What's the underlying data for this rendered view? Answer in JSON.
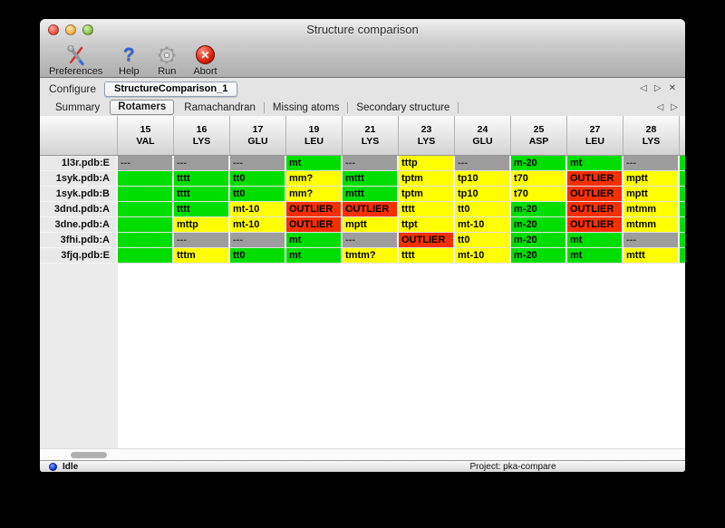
{
  "window": {
    "title": "Structure comparison"
  },
  "toolbar": {
    "items": [
      {
        "label": "Preferences",
        "icon": "tools-icon"
      },
      {
        "label": "Help",
        "icon": "help-icon",
        "glyph": "?"
      },
      {
        "label": "Run",
        "icon": "gear-icon"
      },
      {
        "label": "Abort",
        "icon": "abort-icon",
        "glyph": "✕"
      }
    ]
  },
  "configure": {
    "label": "Configure",
    "selected_config": "StructureComparison_1",
    "prev_glyph": "◁",
    "next_glyph": "▷",
    "close_glyph": "✕"
  },
  "tabs": {
    "items": [
      "Summary",
      "Rotamers",
      "Ramachandran",
      "Missing atoms",
      "Secondary structure"
    ],
    "selected": "Rotamers",
    "prev_glyph": "◁",
    "next_glyph": "▷"
  },
  "table": {
    "columns": [
      {
        "num": "15",
        "res": "VAL"
      },
      {
        "num": "16",
        "res": "LYS"
      },
      {
        "num": "17",
        "res": "GLU"
      },
      {
        "num": "19",
        "res": "LEU"
      },
      {
        "num": "21",
        "res": "LYS"
      },
      {
        "num": "23",
        "res": "LYS"
      },
      {
        "num": "24",
        "res": "GLU"
      },
      {
        "num": "25",
        "res": "ASP"
      },
      {
        "num": "27",
        "res": "LEU"
      },
      {
        "num": "28",
        "res": "LYS"
      }
    ],
    "rows": [
      {
        "label": "1l3r.pdb:E",
        "edge": "green",
        "cells": [
          {
            "t": "---",
            "c": "gray"
          },
          {
            "t": "---",
            "c": "gray"
          },
          {
            "t": "---",
            "c": "gray"
          },
          {
            "t": "mt",
            "c": "green"
          },
          {
            "t": "---",
            "c": "gray"
          },
          {
            "t": "tttp",
            "c": "yellow"
          },
          {
            "t": "---",
            "c": "gray"
          },
          {
            "t": "m-20",
            "c": "green"
          },
          {
            "t": "mt",
            "c": "green"
          },
          {
            "t": "---",
            "c": "gray"
          }
        ]
      },
      {
        "label": "1syk.pdb:A",
        "edge": "green",
        "cells": [
          {
            "t": "",
            "c": "green"
          },
          {
            "t": "tttt",
            "c": "green"
          },
          {
            "t": "tt0",
            "c": "green"
          },
          {
            "t": "mm?",
            "c": "yellow"
          },
          {
            "t": "mttt",
            "c": "green"
          },
          {
            "t": "tptm",
            "c": "yellow"
          },
          {
            "t": "tp10",
            "c": "yellow"
          },
          {
            "t": "t70",
            "c": "yellow"
          },
          {
            "t": "OUTLIER",
            "c": "red"
          },
          {
            "t": "mptt",
            "c": "yellow"
          }
        ]
      },
      {
        "label": "1syk.pdb:B",
        "edge": "green",
        "cells": [
          {
            "t": "",
            "c": "green"
          },
          {
            "t": "tttt",
            "c": "green"
          },
          {
            "t": "tt0",
            "c": "green"
          },
          {
            "t": "mm?",
            "c": "yellow"
          },
          {
            "t": "mttt",
            "c": "green"
          },
          {
            "t": "tptm",
            "c": "yellow"
          },
          {
            "t": "tp10",
            "c": "yellow"
          },
          {
            "t": "t70",
            "c": "yellow"
          },
          {
            "t": "OUTLIER",
            "c": "red"
          },
          {
            "t": "mptt",
            "c": "yellow"
          }
        ]
      },
      {
        "label": "3dnd.pdb:A",
        "edge": "green",
        "cells": [
          {
            "t": "",
            "c": "green"
          },
          {
            "t": "tttt",
            "c": "green"
          },
          {
            "t": "mt-10",
            "c": "yellow"
          },
          {
            "t": "OUTLIER",
            "c": "red"
          },
          {
            "t": "OUTLIER",
            "c": "red"
          },
          {
            "t": "tttt",
            "c": "yellow"
          },
          {
            "t": "tt0",
            "c": "yellow"
          },
          {
            "t": "m-20",
            "c": "green"
          },
          {
            "t": "OUTLIER",
            "c": "red"
          },
          {
            "t": "mtmm",
            "c": "yellow"
          }
        ]
      },
      {
        "label": "3dne.pdb:A",
        "edge": "green",
        "cells": [
          {
            "t": "",
            "c": "green"
          },
          {
            "t": "mttp",
            "c": "yellow"
          },
          {
            "t": "mt-10",
            "c": "yellow"
          },
          {
            "t": "OUTLIER",
            "c": "red"
          },
          {
            "t": "mptt",
            "c": "yellow"
          },
          {
            "t": "ttpt",
            "c": "yellow"
          },
          {
            "t": "mt-10",
            "c": "yellow"
          },
          {
            "t": "m-20",
            "c": "green"
          },
          {
            "t": "OUTLIER",
            "c": "red"
          },
          {
            "t": "mtmm",
            "c": "yellow"
          }
        ]
      },
      {
        "label": "3fhi.pdb:A",
        "edge": "green",
        "cells": [
          {
            "t": "",
            "c": "green"
          },
          {
            "t": "---",
            "c": "gray"
          },
          {
            "t": "---",
            "c": "gray"
          },
          {
            "t": "mt",
            "c": "green"
          },
          {
            "t": "---",
            "c": "gray"
          },
          {
            "t": "OUTLIER",
            "c": "red"
          },
          {
            "t": "tt0",
            "c": "yellow"
          },
          {
            "t": "m-20",
            "c": "green"
          },
          {
            "t": "mt",
            "c": "green"
          },
          {
            "t": "---",
            "c": "gray"
          }
        ]
      },
      {
        "label": "3fjq.pdb:E",
        "edge": "green",
        "cells": [
          {
            "t": "",
            "c": "green"
          },
          {
            "t": "tttm",
            "c": "yellow"
          },
          {
            "t": "tt0",
            "c": "green"
          },
          {
            "t": "mt",
            "c": "green"
          },
          {
            "t": "tmtm?",
            "c": "yellow"
          },
          {
            "t": "tttt",
            "c": "yellow"
          },
          {
            "t": "mt-10",
            "c": "yellow"
          },
          {
            "t": "m-20",
            "c": "green"
          },
          {
            "t": "mt",
            "c": "green"
          },
          {
            "t": "mttt",
            "c": "yellow"
          }
        ]
      }
    ],
    "cell_colors": {
      "green": "#00de00",
      "yellow": "#ffff00",
      "red": "#f53000",
      "gray": "#9d9d9d"
    }
  },
  "status_bar": {
    "state": "Idle",
    "project": "Project: pka-compare"
  }
}
